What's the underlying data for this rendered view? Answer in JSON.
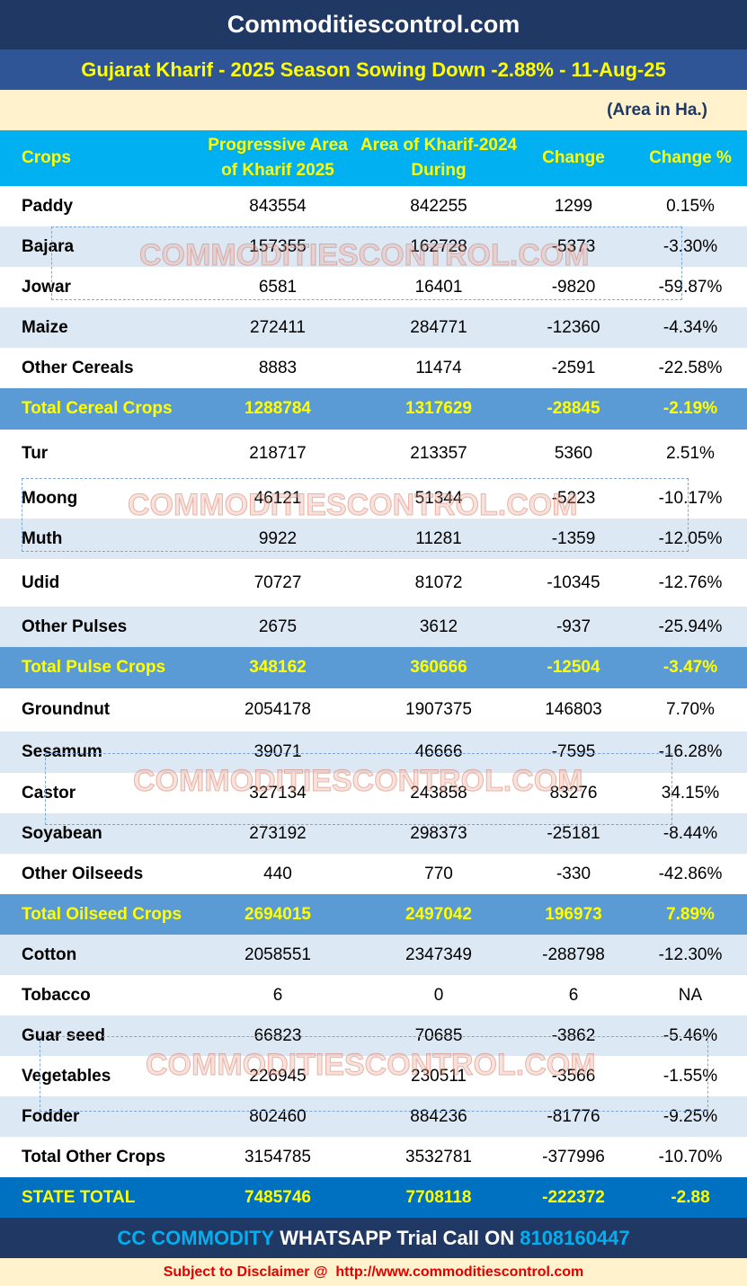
{
  "header": {
    "site": "Commoditiescontrol.com",
    "title": "Gujarat Kharif - 2025 Season Sowing Down -2.88% - 11-Aug-25",
    "unit": "(Area in Ha.)"
  },
  "table": {
    "columns": [
      "Crops",
      "Progressive Area of Kharif 2025",
      "Area of Kharif-2024 During",
      "Change",
      "Change  %"
    ],
    "rows": [
      [
        "Paddy",
        "843554",
        "842255",
        "1299",
        "0.15%"
      ],
      [
        "Bajara",
        "157355",
        "162728",
        "-5373",
        "-3.30%"
      ],
      [
        "Jowar",
        "6581",
        "16401",
        "-9820",
        "-59.87%"
      ],
      [
        "Maize",
        "272411",
        "284771",
        "-12360",
        "-4.34%"
      ],
      [
        "Other Cereals",
        "8883",
        "11474",
        "-2591",
        "-22.58%"
      ],
      [
        "Total Cereal Crops",
        "1288784",
        "1317629",
        "-28845",
        "-2.19%"
      ],
      [
        "Tur",
        "218717",
        "213357",
        "5360",
        "2.51%"
      ],
      [
        "Moong",
        "46121",
        "51344",
        "-5223",
        "-10.17%"
      ],
      [
        "Muth",
        "9922",
        "11281",
        "-1359",
        "-12.05%"
      ],
      [
        "Udid",
        "70727",
        "81072",
        "-10345",
        "-12.76%"
      ],
      [
        "Other Pulses",
        "2675",
        "3612",
        "-937",
        "-25.94%"
      ],
      [
        "Total Pulse Crops",
        "348162",
        "360666",
        "-12504",
        "-3.47%"
      ],
      [
        "Groundnut",
        "2054178",
        "1907375",
        "146803",
        "7.70%"
      ],
      [
        "Sesamum",
        "39071",
        "46666",
        "-7595",
        "-16.28%"
      ],
      [
        "Castor",
        "327134",
        "243858",
        "83276",
        "34.15%"
      ],
      [
        "Soyabean",
        "273192",
        "298373",
        "-25181",
        "-8.44%"
      ],
      [
        "Other Oilseeds",
        "440",
        "770",
        "-330",
        "-42.86%"
      ],
      [
        "Total Oilseed Crops",
        "2694015",
        "2497042",
        "196973",
        "7.89%"
      ],
      [
        "Cotton",
        "2058551",
        "2347349",
        "-288798",
        "-12.30%"
      ],
      [
        "Tobacco",
        "6",
        "0",
        "6",
        "NA"
      ],
      [
        "Guar seed",
        "66823",
        "70685",
        "-3862",
        "-5.46%"
      ],
      [
        "Vegetables",
        "226945",
        "230511",
        "-3566",
        "-1.55%"
      ],
      [
        "Fodder",
        "802460",
        "884236",
        "-81776",
        "-9.25%"
      ],
      [
        "Total Other Crops",
        "3154785",
        "3532781",
        "-377996",
        "-10.70%"
      ],
      [
        "STATE TOTAL",
        "7485746",
        "7708118",
        "-222372",
        "-2.88"
      ]
    ]
  },
  "watermark": "COMMODITIESCONTROL.COM",
  "footer": {
    "brand": "CC COMMODITY",
    "text": "WHATSAPP Trial Call ON",
    "phone": "8108160447",
    "disclaimer": "Subject to Disclaimer @  http://www.commoditiescontrol.com"
  }
}
